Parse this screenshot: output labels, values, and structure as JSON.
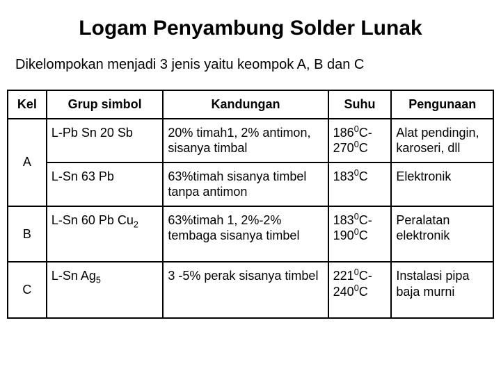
{
  "title": "Logam Penyambung Solder Lunak",
  "subtitle": "Dikelompokan menjadi 3 jenis yaitu keompok A, B dan C",
  "table": {
    "columns": [
      "Kel",
      "Grup simbol",
      "Kandungan",
      "Suhu",
      "Pengunaan"
    ],
    "groupA": {
      "kel": "A",
      "row1": {
        "grup_html": "L-Pb Sn 20 Sb",
        "kandungan_html": "20% timah1, 2% antimon, sisanya timbal",
        "suhu_html": "186<sup>0</sup>C-270<sup>0</sup>C",
        "pengunaan_html": "Alat pendingin, karoseri, dll"
      },
      "row2": {
        "grup_html": "L-Sn 63 Pb",
        "kandungan_html": "63%timah sisanya timbel tanpa antimon",
        "suhu_html": "183<sup>0</sup>C",
        "pengunaan_html": "Elektronik"
      }
    },
    "groupB": {
      "kel": "B",
      "grup_html": "L-Sn 60 Pb Cu<sub>2</sub>",
      "kandungan_html": "63%timah 1, 2%-2% tembaga sisanya timbel",
      "suhu_html": "183<sup>0</sup>C-190<sup>0</sup>C",
      "pengunaan_html": "Peralatan elektronik"
    },
    "groupC": {
      "kel": "C",
      "grup_html": "L-Sn Ag<sub>5</sub>",
      "kandungan_html": "3 -5% perak sisanya timbel",
      "suhu_html": "221<sup>0</sup>C-240<sup>0</sup>C",
      "pengunaan_html": "Instalasi pipa baja murni"
    }
  },
  "style": {
    "background_color": "#ffffff",
    "text_color": "#000000",
    "border_color": "#000000",
    "title_fontsize": 30,
    "subtitle_fontsize": 20,
    "cell_fontsize": 18,
    "font_family": "Arial"
  }
}
